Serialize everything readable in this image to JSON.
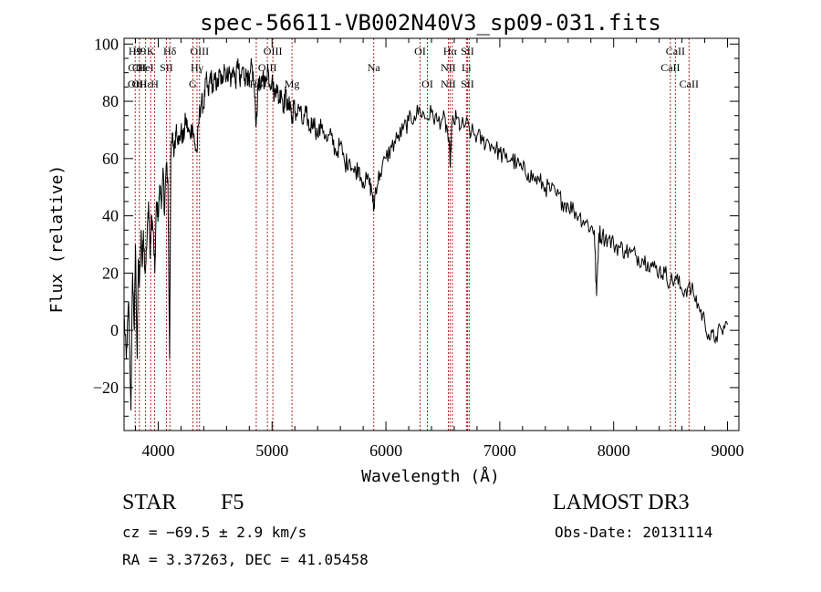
{
  "chart_data": {
    "type": "line",
    "title": "spec-56611-VB002N40V3_sp09-031.fits",
    "xlabel": "Wavelength (Å)",
    "ylabel": "Flux (relative)",
    "xlim": [
      3700,
      9100
    ],
    "ylim": [
      -35,
      102
    ],
    "xticks": [
      4000,
      5000,
      6000,
      7000,
      8000,
      9000
    ],
    "yticks": [
      -20,
      0,
      20,
      40,
      60,
      80,
      100
    ],
    "yticklabels": [
      "−20",
      "0",
      "20",
      "40",
      "60",
      "80",
      "100"
    ],
    "series": [
      {
        "name": "flux",
        "points": [
          [
            3700,
            5
          ],
          [
            3720,
            -10
          ],
          [
            3740,
            10
          ],
          [
            3760,
            -28
          ],
          [
            3775,
            20
          ],
          [
            3790,
            0
          ],
          [
            3800,
            30
          ],
          [
            3815,
            -10
          ],
          [
            3825,
            25
          ],
          [
            3835,
            15
          ],
          [
            3850,
            35
          ],
          [
            3860,
            22
          ],
          [
            3870,
            35
          ],
          [
            3885,
            20
          ],
          [
            3900,
            30
          ],
          [
            3915,
            45
          ],
          [
            3930,
            25
          ],
          [
            3940,
            40
          ],
          [
            3955,
            35
          ],
          [
            3970,
            20
          ],
          [
            3985,
            45
          ],
          [
            4000,
            40
          ],
          [
            4015,
            50
          ],
          [
            4030,
            45
          ],
          [
            4045,
            55
          ],
          [
            4055,
            40
          ],
          [
            4070,
            58
          ],
          [
            4085,
            52
          ],
          [
            4100,
            -10
          ],
          [
            4110,
            60
          ],
          [
            4125,
            68
          ],
          [
            4140,
            62
          ],
          [
            4160,
            72
          ],
          [
            4180,
            65
          ],
          [
            4200,
            70
          ],
          [
            4220,
            66
          ],
          [
            4240,
            74
          ],
          [
            4260,
            70
          ],
          [
            4280,
            68
          ],
          [
            4300,
            72
          ],
          [
            4320,
            65
          ],
          [
            4340,
            62
          ],
          [
            4360,
            75
          ],
          [
            4380,
            80
          ],
          [
            4400,
            78
          ],
          [
            4420,
            88
          ],
          [
            4440,
            82
          ],
          [
            4460,
            90
          ],
          [
            4480,
            84
          ],
          [
            4500,
            88
          ],
          [
            4520,
            85
          ],
          [
            4540,
            90
          ],
          [
            4560,
            86
          ],
          [
            4580,
            93
          ],
          [
            4600,
            88
          ],
          [
            4620,
            91
          ],
          [
            4640,
            87
          ],
          [
            4660,
            92
          ],
          [
            4680,
            86
          ],
          [
            4700,
            95
          ],
          [
            4720,
            85
          ],
          [
            4740,
            92
          ],
          [
            4760,
            88
          ],
          [
            4780,
            90
          ],
          [
            4800,
            85
          ],
          [
            4820,
            93
          ],
          [
            4840,
            86
          ],
          [
            4861,
            72
          ],
          [
            4880,
            88
          ],
          [
            4900,
            84
          ],
          [
            4920,
            90
          ],
          [
            4940,
            85
          ],
          [
            4960,
            92
          ],
          [
            4980,
            86
          ],
          [
            5000,
            88
          ],
          [
            5020,
            82
          ],
          [
            5040,
            86
          ],
          [
            5060,
            80
          ],
          [
            5080,
            84
          ],
          [
            5100,
            78
          ],
          [
            5120,
            83
          ],
          [
            5140,
            77
          ],
          [
            5160,
            80
          ],
          [
            5175,
            72
          ],
          [
            5190,
            79
          ],
          [
            5210,
            75
          ],
          [
            5240,
            78
          ],
          [
            5270,
            72
          ],
          [
            5300,
            76
          ],
          [
            5330,
            70
          ],
          [
            5360,
            74
          ],
          [
            5400,
            68
          ],
          [
            5440,
            72
          ],
          [
            5480,
            66
          ],
          [
            5520,
            68
          ],
          [
            5560,
            62
          ],
          [
            5600,
            65
          ],
          [
            5640,
            58
          ],
          [
            5680,
            60
          ],
          [
            5720,
            55
          ],
          [
            5760,
            57
          ],
          [
            5800,
            52
          ],
          [
            5850,
            52
          ],
          [
            5880,
            48
          ],
          [
            5893,
            42
          ],
          [
            5910,
            50
          ],
          [
            5950,
            55
          ],
          [
            6000,
            60
          ],
          [
            6050,
            64
          ],
          [
            6100,
            67
          ],
          [
            6150,
            70
          ],
          [
            6200,
            73
          ],
          [
            6250,
            75
          ],
          [
            6300,
            77
          ],
          [
            6350,
            74
          ],
          [
            6400,
            76
          ],
          [
            6450,
            73
          ],
          [
            6500,
            74
          ],
          [
            6540,
            70
          ],
          [
            6563,
            58
          ],
          [
            6580,
            72
          ],
          [
            6620,
            74
          ],
          [
            6660,
            71
          ],
          [
            6700,
            72
          ],
          [
            6750,
            69
          ],
          [
            6800,
            68
          ],
          [
            6850,
            66
          ],
          [
            6900,
            66
          ],
          [
            6950,
            64
          ],
          [
            7000,
            62
          ],
          [
            7050,
            60
          ],
          [
            7100,
            60
          ],
          [
            7150,
            58
          ],
          [
            7200,
            56
          ],
          [
            7250,
            55
          ],
          [
            7300,
            53
          ],
          [
            7350,
            52
          ],
          [
            7400,
            50
          ],
          [
            7450,
            49
          ],
          [
            7500,
            47
          ],
          [
            7550,
            45
          ],
          [
            7600,
            44
          ],
          [
            7650,
            42
          ],
          [
            7700,
            40
          ],
          [
            7750,
            38
          ],
          [
            7800,
            36
          ],
          [
            7830,
            35
          ],
          [
            7850,
            12
          ],
          [
            7870,
            34
          ],
          [
            7900,
            33
          ],
          [
            7950,
            32
          ],
          [
            8000,
            30
          ],
          [
            8050,
            29
          ],
          [
            8100,
            28
          ],
          [
            8150,
            27
          ],
          [
            8200,
            26
          ],
          [
            8250,
            25
          ],
          [
            8300,
            24
          ],
          [
            8350,
            22
          ],
          [
            8400,
            21
          ],
          [
            8450,
            20
          ],
          [
            8500,
            17
          ],
          [
            8550,
            18
          ],
          [
            8600,
            14
          ],
          [
            8650,
            15
          ],
          [
            8700,
            13
          ],
          [
            8750,
            8
          ],
          [
            8800,
            3
          ],
          [
            8850,
            -3
          ],
          [
            8900,
            -2
          ],
          [
            8950,
            0
          ],
          [
            9000,
            2
          ]
        ]
      }
    ],
    "lines": [
      {
        "x": 3798,
        "labels": [
          "H9",
          "CII",
          "OII"
        ]
      },
      {
        "x": 3835,
        "labels": [
          "H9",
          "CII",
          "OII"
        ]
      },
      {
        "x": 3889,
        "labels": [
          "",
          "HeI",
          "Hε"
        ]
      },
      {
        "x": 3934,
        "labels": [
          "K",
          "",
          ""
        ]
      },
      {
        "x": 3969,
        "labels": [
          "",
          "",
          "H"
        ]
      },
      {
        "x": 4072,
        "labels": [
          "",
          "SII",
          ""
        ]
      },
      {
        "x": 4102,
        "labels": [
          "Hδ",
          "",
          ""
        ]
      },
      {
        "x": 4304,
        "labels": [
          "",
          "",
          "G"
        ]
      },
      {
        "x": 4341,
        "labels": [
          "",
          "Hγ",
          ""
        ]
      },
      {
        "x": 4363,
        "labels": [
          "OIII",
          "",
          ""
        ]
      },
      {
        "x": 4861,
        "labels": [
          "",
          "",
          "Hβ"
        ]
      },
      {
        "x": 4959,
        "labels": [
          "",
          "OIII",
          ""
        ]
      },
      {
        "x": 5007,
        "labels": [
          "OIII",
          "",
          ""
        ]
      },
      {
        "x": 5175,
        "labels": [
          "",
          "",
          "Mg"
        ]
      },
      {
        "x": 5893,
        "labels": [
          "",
          "Na",
          ""
        ]
      },
      {
        "x": 6300,
        "labels": [
          "OI",
          "",
          ""
        ]
      },
      {
        "x": 6364,
        "labels": [
          "",
          "",
          "OI"
        ]
      },
      {
        "x": 6548,
        "labels": [
          "",
          "NII",
          "NII"
        ]
      },
      {
        "x": 6563,
        "labels": [
          "Hα",
          "",
          ""
        ]
      },
      {
        "x": 6583,
        "labels": [
          "",
          "",
          ""
        ]
      },
      {
        "x": 6707,
        "labels": [
          "",
          "Li",
          ""
        ]
      },
      {
        "x": 6716,
        "labels": [
          "SII",
          "",
          "SII"
        ]
      },
      {
        "x": 6731,
        "labels": [
          "",
          "",
          ""
        ]
      },
      {
        "x": 8498,
        "labels": [
          "",
          "CaII",
          ""
        ]
      },
      {
        "x": 8542,
        "labels": [
          "CaII",
          "",
          ""
        ]
      },
      {
        "x": 8662,
        "labels": [
          "",
          "",
          "CaII"
        ]
      }
    ]
  },
  "info": {
    "object_class": "STAR",
    "subclass": "F5",
    "survey": "LAMOST DR3",
    "cz": "cz = −69.5 ± 2.9 km/s",
    "obs_date": "Obs-Date: 20131114",
    "coords": "RA =   3.37263, DEC =  41.05458"
  },
  "colors": {
    "line_marker": "#b22222",
    "axes": "#000000",
    "spectrum": "#000000"
  }
}
